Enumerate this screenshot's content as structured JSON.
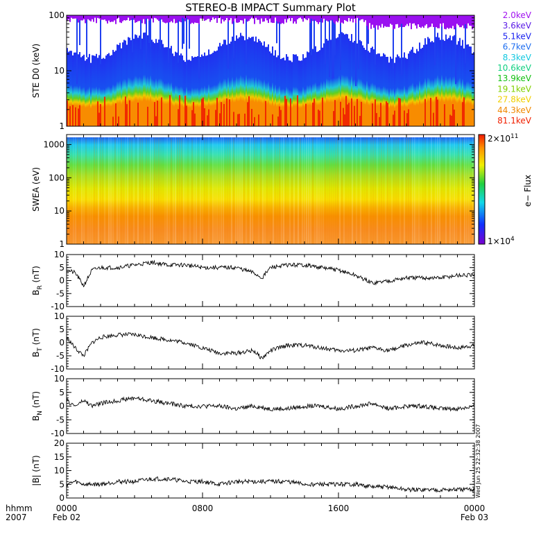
{
  "title": "STEREO-B IMPACT Summary Plot",
  "time_axis": {
    "units_label": "hhmm",
    "year_label": "2007",
    "ticks": [
      {
        "time": "0000",
        "date": "Feb 02",
        "hour": 0
      },
      {
        "time": "0800",
        "date": "",
        "hour": 8
      },
      {
        "time": "1600",
        "date": "",
        "hour": 16
      },
      {
        "time": "0000",
        "date": "Feb 03",
        "hour": 24
      }
    ],
    "range_hours": [
      0,
      24
    ]
  },
  "timestamp": "Wed Jun 25 22:32:38 2007",
  "ste_legend": [
    {
      "label": "2.0keV",
      "color": "#a010f0"
    },
    {
      "label": "3.6keV",
      "color": "#5a1ae6"
    },
    {
      "label": "5.1keV",
      "color": "#1820f0"
    },
    {
      "label": "6.7keV",
      "color": "#1e6ef0"
    },
    {
      "label": "8.3keV",
      "color": "#10c8e0"
    },
    {
      "label": "10.6keV",
      "color": "#10d080"
    },
    {
      "label": "13.9keV",
      "color": "#10c010"
    },
    {
      "label": "19.1keV",
      "color": "#80d000"
    },
    {
      "label": "27.8keV",
      "color": "#f0d000"
    },
    {
      "label": "44.3keV",
      "color": "#f08800"
    },
    {
      "label": "81.1keV",
      "color": "#f02000"
    }
  ],
  "colorbar": {
    "label": "e− Flux",
    "max_label_base": "2×10",
    "max_label_exp": "11",
    "min_label_base": "1×10",
    "min_label_exp": "4",
    "range": [
      10000,
      200000000000
    ]
  },
  "chart_data": [
    {
      "type": "line",
      "ylabel": "STE D0 (keV)",
      "yscale": "log",
      "ylim": [
        1,
        100
      ],
      "yticks": [
        "1",
        "10",
        "100"
      ]
    },
    {
      "type": "heatmap",
      "ylabel": "SWEA (eV)",
      "yscale": "log",
      "ylim": [
        1,
        2000
      ],
      "yticks": [
        "1",
        "10",
        "100",
        "1000"
      ]
    },
    {
      "type": "line",
      "ylabel": "B",
      "ylabel_sub": "R",
      "ylabel_unit": " (nT)",
      "ylim": [
        -10,
        10
      ],
      "yticks": [
        "-10",
        "-5",
        "0",
        "5",
        "10"
      ],
      "x": [
        0,
        0.5,
        1,
        1.5,
        2,
        3,
        4,
        5,
        6,
        7,
        8,
        9,
        10,
        11,
        11.5,
        12,
        13,
        14,
        15,
        16,
        17,
        18,
        19,
        20,
        21,
        22,
        23,
        24
      ],
      "y": [
        4,
        3,
        -2,
        4,
        5,
        5,
        6,
        7,
        6,
        6,
        5,
        5,
        5,
        3,
        1,
        5,
        6,
        6,
        5,
        4,
        2,
        -1,
        0,
        1,
        1,
        1,
        2,
        2
      ]
    },
    {
      "type": "line",
      "ylabel": "B",
      "ylabel_sub": "T",
      "ylabel_unit": " (nT)",
      "ylim": [
        -10,
        10
      ],
      "yticks": [
        "-10",
        "-5",
        "0",
        "5",
        "10"
      ],
      "x": [
        0,
        0.5,
        1,
        1.5,
        2,
        3,
        4,
        5,
        6,
        7,
        8,
        9,
        10,
        11,
        11.5,
        12,
        13,
        14,
        15,
        16,
        17,
        18,
        19,
        20,
        21,
        22,
        23,
        24
      ],
      "y": [
        2,
        -2,
        -5,
        0,
        2,
        3,
        3,
        2,
        1,
        0,
        -2,
        -4,
        -4,
        -3,
        -6,
        -3,
        -1,
        -1,
        -2,
        -3,
        -3,
        -2,
        -3,
        -1,
        0,
        -1,
        -2,
        -1
      ]
    },
    {
      "type": "line",
      "ylabel": "B",
      "ylabel_sub": "N",
      "ylabel_unit": " (nT)",
      "ylim": [
        -10,
        10
      ],
      "yticks": [
        "-10",
        "-5",
        "0",
        "5",
        "10"
      ],
      "x": [
        0,
        0.5,
        1,
        1.5,
        2,
        3,
        4,
        5,
        6,
        7,
        8,
        9,
        10,
        11,
        12,
        13,
        14,
        15,
        16,
        17,
        18,
        19,
        20,
        21,
        22,
        23,
        24
      ],
      "y": [
        2,
        0,
        2,
        0,
        1,
        2,
        3,
        2,
        1,
        0,
        0,
        0,
        -1,
        0,
        -1,
        -1,
        0,
        0,
        -1,
        0,
        1,
        -1,
        0,
        0,
        -1,
        -1,
        0
      ]
    },
    {
      "type": "line",
      "ylabel": "|B| (nT)",
      "ylim": [
        0,
        20
      ],
      "yticks": [
        "0",
        "5",
        "10",
        "15",
        "20"
      ],
      "x": [
        0,
        0.5,
        1,
        2,
        3,
        4,
        5,
        6,
        7,
        8,
        9,
        10,
        11,
        12,
        13,
        14,
        15,
        16,
        17,
        18,
        19,
        20,
        21,
        22,
        23,
        24
      ],
      "y": [
        5,
        6,
        5,
        5,
        6,
        6,
        7,
        7,
        6,
        6,
        5,
        6,
        6,
        6,
        6,
        5,
        5,
        5,
        5,
        4,
        4,
        3,
        3,
        3,
        3,
        3
      ]
    }
  ]
}
